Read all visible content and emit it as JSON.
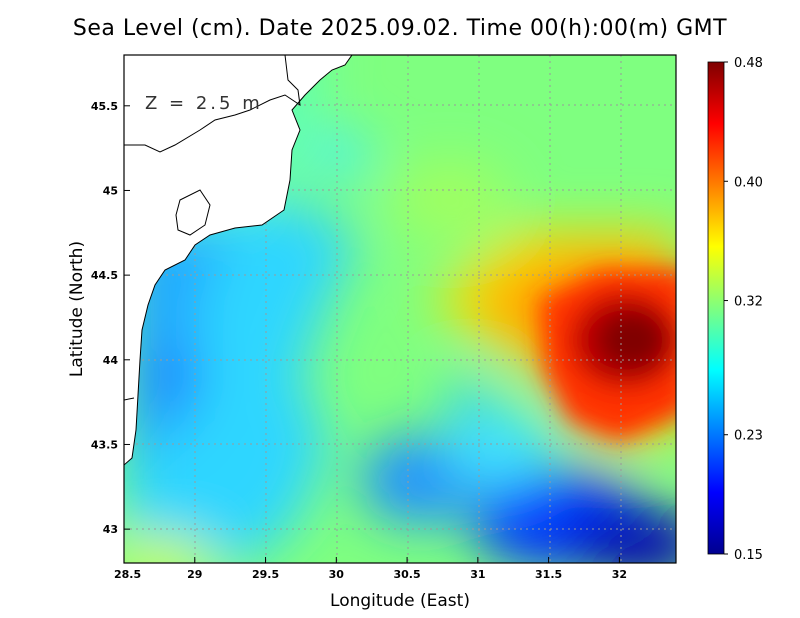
{
  "chart_data": {
    "type": "heatmap",
    "title": "Sea Level (cm). Date 2025.09.02. Time 00(h):00(m) GMT",
    "xlabel": "Longitude (East)",
    "ylabel": "Latitude (North)",
    "annotation": "Z = 2.5 m",
    "xlim": [
      28.5,
      32.4
    ],
    "ylim": [
      42.8,
      45.8
    ],
    "xticks": [
      "28.5",
      "29",
      "29.5",
      "30",
      "30.5",
      "31",
      "31.5",
      "32"
    ],
    "yticks": [
      "43",
      "43.5",
      "44",
      "44.5",
      "45",
      "45.5"
    ],
    "grid": true,
    "colorbar": {
      "min": 0.15,
      "max": 0.48,
      "tick_labels": [
        "0.48",
        "0.40",
        "0.32",
        "0.23",
        "0.15"
      ],
      "colormap": "jet",
      "placement": "right"
    },
    "field_features": [
      {
        "description": "maximum",
        "lon": 32.05,
        "lat": 44.1,
        "value": 0.48
      },
      {
        "description": "minimum",
        "lon": 32.3,
        "lat": 42.95,
        "value": 0.15
      },
      {
        "description": "local low",
        "lon": 28.85,
        "lat": 43.9,
        "value": 0.22
      }
    ],
    "land_color": "#ffffff",
    "coastline_color": "#000000"
  }
}
